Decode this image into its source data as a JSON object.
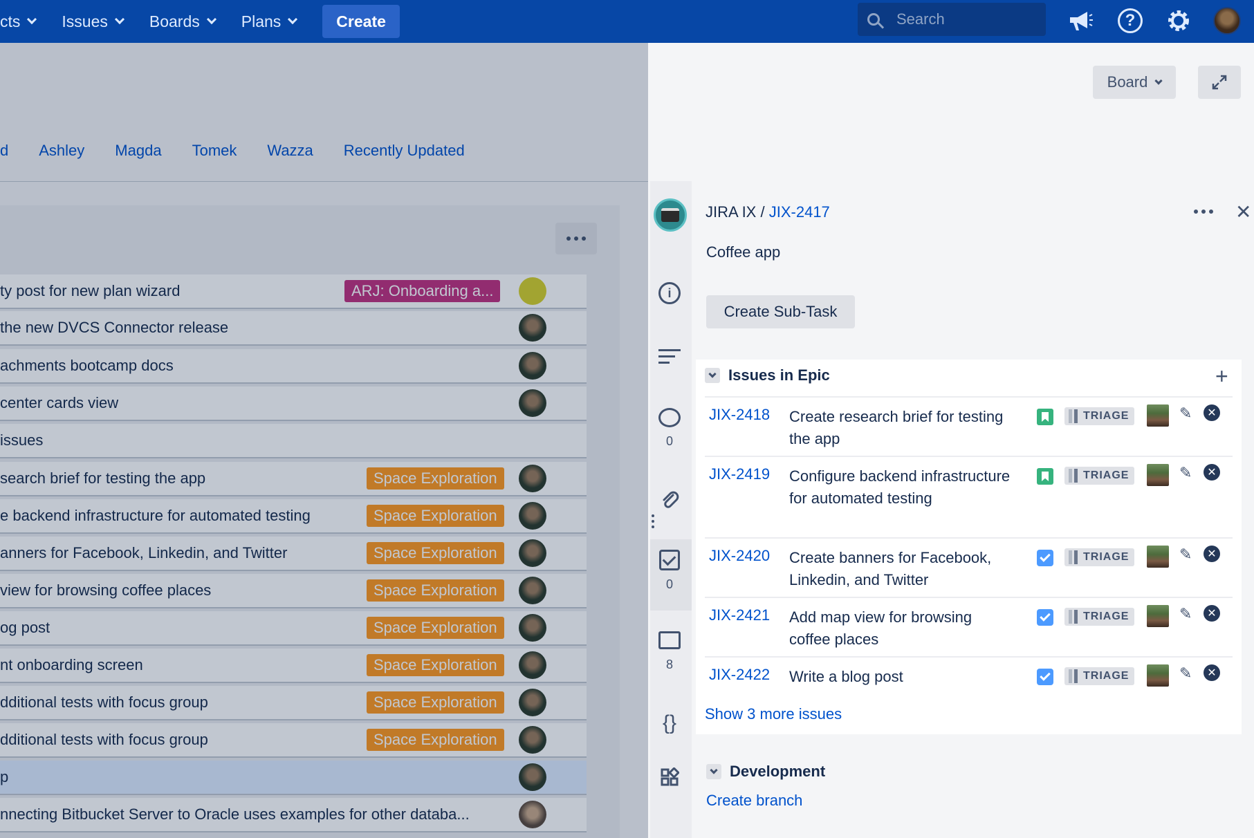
{
  "nav": {
    "items": [
      {
        "label": "cts"
      },
      {
        "label": "Issues"
      },
      {
        "label": "Boards"
      },
      {
        "label": "Plans"
      }
    ],
    "create_label": "Create",
    "search_placeholder": "Search"
  },
  "header": {
    "board_label": "Board",
    "quick_filters": [
      "d",
      "Ashley",
      "Magda",
      "Tomek",
      "Wazza",
      "Recently Updated"
    ]
  },
  "cards": [
    {
      "text": "ty post for new plan wizard",
      "epic": "ARJ: Onboarding a...",
      "epic_color": "#c0307f",
      "avatar": "yellow"
    },
    {
      "text": "the new DVCS Connector release",
      "epic": "",
      "avatar": "photo"
    },
    {
      "text": "achments bootcamp docs",
      "epic": "",
      "avatar": "photo"
    },
    {
      "text": " center cards view",
      "epic": "",
      "avatar": "photo"
    },
    {
      "text": "issues",
      "epic": "",
      "avatar": ""
    },
    {
      "text": "search brief for testing the app",
      "epic": "Space Exploration",
      "epic_color": "#ff991f",
      "avatar": "photo"
    },
    {
      "text": "e backend infrastructure for automated testing",
      "epic": "Space Exploration",
      "epic_color": "#ff991f",
      "avatar": "photo"
    },
    {
      "text": "anners for Facebook, Linkedin, and Twitter",
      "epic": "Space Exploration",
      "epic_color": "#ff991f",
      "avatar": "photo"
    },
    {
      "text": "view for browsing coffee places",
      "epic": "Space Exploration",
      "epic_color": "#ff991f",
      "avatar": "photo"
    },
    {
      "text": "og post",
      "epic": "Space Exploration",
      "epic_color": "#ff991f",
      "avatar": "photo"
    },
    {
      "text": "nt onboarding screen",
      "epic": "Space Exploration",
      "epic_color": "#ff991f",
      "avatar": "photo"
    },
    {
      "text": "dditional tests with focus group",
      "epic": "Space Exploration",
      "epic_color": "#ff991f",
      "avatar": "photo"
    },
    {
      "text": "dditional tests with focus group",
      "epic": "Space Exploration",
      "epic_color": "#ff991f",
      "avatar": "photo"
    },
    {
      "text": "p",
      "epic": "",
      "avatar": "photo"
    },
    {
      "text": "nnecting Bitbucket Server to Oracle uses examples for other databa...",
      "epic": "",
      "avatar": "man"
    }
  ],
  "detail": {
    "project": "JIRA IX",
    "separator": "/",
    "issue_key": "JIX-2417",
    "summary": "Coffee app",
    "create_subtask_label": "Create Sub-Task",
    "rail_counts": {
      "comments": "0",
      "checklist": "0",
      "screens": "8"
    },
    "issues_in_epic_title": "Issues in Epic",
    "epic_issues": [
      {
        "key": "JIX-2418",
        "summary": "Create research brief for testing the app",
        "type": "story",
        "status": "TRIAGE"
      },
      {
        "key": "JIX-2419",
        "summary": "Configure backend infrastructure for automated testing",
        "type": "story",
        "status": "TRIAGE"
      },
      {
        "key": "JIX-2420",
        "summary": "Create banners for Facebook, Linkedin, and Twitter",
        "type": "task",
        "status": "TRIAGE"
      },
      {
        "key": "JIX-2421",
        "summary": "Add map view for browsing coffee places",
        "type": "task",
        "status": "TRIAGE"
      },
      {
        "key": "JIX-2422",
        "summary": "Write a blog post",
        "type": "task",
        "status": "TRIAGE"
      }
    ],
    "show_more_label": "Show 3 more issues",
    "development_title": "Development",
    "create_branch_label": "Create branch"
  }
}
